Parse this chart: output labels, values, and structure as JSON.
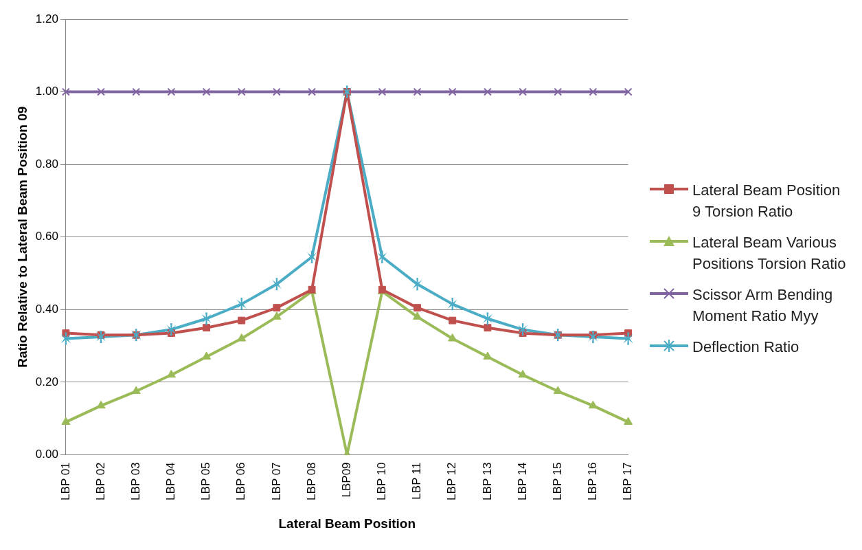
{
  "chart_data": {
    "type": "line",
    "xlabel": "Lateral Beam Position",
    "ylabel": "Ratio Relative to Lateral Beam Position 09",
    "categories": [
      "LBP 01",
      "LBP 02",
      "LBP 03",
      "LBP 04",
      "LBP 05",
      "LBP 06",
      "LBP 07",
      "LBP 08",
      "LBP09",
      "LBP 10",
      "LBP 11",
      "LBP 12",
      "LBP 13",
      "LBP 14",
      "LBP 15",
      "LBP 16",
      "LBP 17"
    ],
    "series": [
      {
        "name": "Lateral Beam Position 9 Torsion Ratio",
        "color": "#c0504d",
        "marker": "square",
        "values": [
          0.335,
          0.33,
          0.33,
          0.335,
          0.35,
          0.37,
          0.405,
          0.455,
          1.0,
          0.455,
          0.405,
          0.37,
          0.35,
          0.335,
          0.33,
          0.33,
          0.335
        ]
      },
      {
        "name": "Lateral Beam Various Positions Torsion Ratio",
        "color": "#9bbb59",
        "marker": "triangle",
        "values": [
          0.09,
          0.135,
          0.175,
          0.22,
          0.27,
          0.32,
          0.38,
          0.45,
          0.0,
          0.45,
          0.38,
          0.32,
          0.27,
          0.22,
          0.175,
          0.135,
          0.09
        ]
      },
      {
        "name": "Scissor Arm Bending Moment Ratio Myy",
        "color": "#8064a2",
        "marker": "cross",
        "values": [
          1.0,
          1.0,
          1.0,
          1.0,
          1.0,
          1.0,
          1.0,
          1.0,
          1.0,
          1.0,
          1.0,
          1.0,
          1.0,
          1.0,
          1.0,
          1.0,
          1.0
        ]
      },
      {
        "name": "Deflection Ratio",
        "color": "#4bacc6",
        "marker": "star",
        "values": [
          0.32,
          0.325,
          0.33,
          0.345,
          0.375,
          0.415,
          0.47,
          0.545,
          1.0,
          0.545,
          0.47,
          0.415,
          0.375,
          0.345,
          0.33,
          0.325,
          0.32
        ]
      }
    ],
    "ylim": [
      0,
      1.2
    ],
    "yticks": [
      {
        "value": 0,
        "label": "0.00"
      },
      {
        "value": 0.2,
        "label": "0.20"
      },
      {
        "value": 0.4,
        "label": "0.40"
      },
      {
        "value": 0.6,
        "label": "0.60"
      },
      {
        "value": 0.8,
        "label": "0.80"
      },
      {
        "value": 1.0,
        "label": "1.00"
      },
      {
        "value": 1.2,
        "label": "1.20"
      }
    ],
    "grid": "y",
    "legend": "right"
  }
}
